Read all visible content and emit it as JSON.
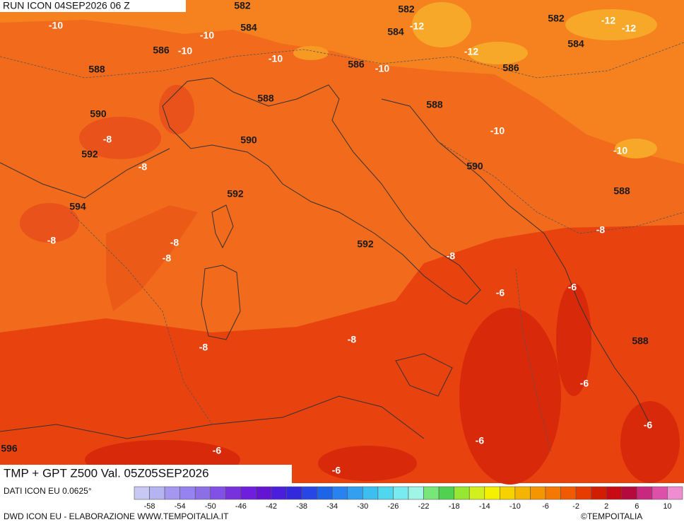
{
  "header": {
    "run": "RUN ICON 04SEP2026 06 Z",
    "product": "TMP + GPT Z500 Val. 05Z05SEP2026"
  },
  "map_labels": {
    "geopotential": [
      582,
      582,
      582,
      584,
      584,
      584,
      586,
      586,
      586,
      588,
      588,
      588,
      588,
      588,
      590,
      590,
      590,
      592,
      592,
      592,
      594,
      596
    ],
    "temperature": [
      -10,
      -10,
      -10,
      -10,
      -10,
      -10,
      -10,
      -12,
      -12,
      -12,
      -12,
      -8,
      -8,
      -8,
      -8,
      -8,
      -8,
      -8,
      -8,
      -8,
      -6,
      -6,
      -6,
      -6,
      -6,
      -6,
      -6
    ]
  },
  "footer": {
    "source": "DATI ICON EU 0.0625°",
    "credits": "DWD ICON EU - ELABORAZIONE WWW.TEMPOITALIA.IT",
    "copyright": "©TEMPOITALIA"
  },
  "colorbar": {
    "labels": [
      -58,
      -54,
      -50,
      -46,
      -42,
      -38,
      -34,
      -30,
      -26,
      -22,
      -18,
      -14,
      -10,
      -6,
      -2,
      2,
      6,
      10
    ],
    "colors": [
      "#c8c8f5",
      "#b4b4f0",
      "#a596f0",
      "#9682f0",
      "#8c6ee6",
      "#8250e6",
      "#7832dc",
      "#6e1edc",
      "#6414d2",
      "#4b1edc",
      "#3228dc",
      "#2846e6",
      "#1e64e6",
      "#2882f0",
      "#32a0f0",
      "#3cbef0",
      "#50d7f0",
      "#78ebf0",
      "#a0f5e6",
      "#78e678",
      "#50d250",
      "#96e632",
      "#d2f01e",
      "#f5f000",
      "#f5d200",
      "#f5b400",
      "#f59600",
      "#f57800",
      "#f05a00",
      "#e63c00",
      "#d21e00",
      "#c80a14",
      "#b40a3c",
      "#c8287d",
      "#dc50aa",
      "#f08cd2"
    ]
  }
}
